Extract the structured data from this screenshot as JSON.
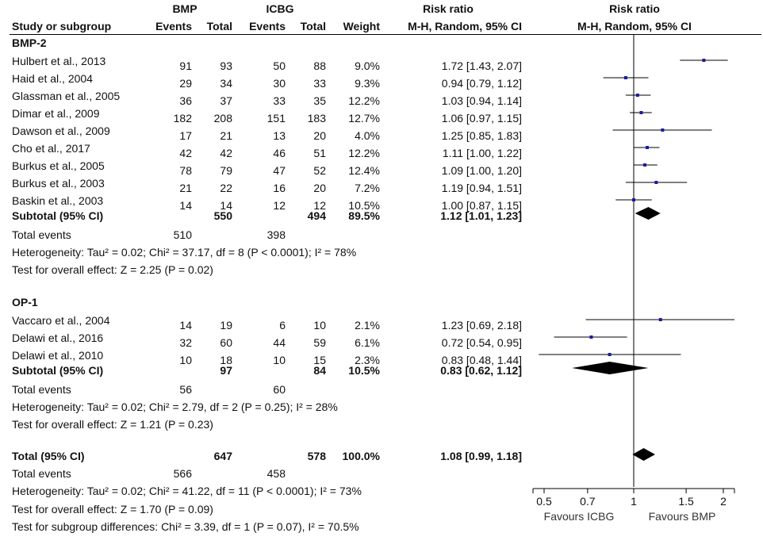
{
  "headers": {
    "study": "Study or subgroup",
    "exp_group": "BMP",
    "ctl_group": "ICBG",
    "events": "Events",
    "total": "Total",
    "weight": "Weight",
    "rr_title": "Risk ratio",
    "rr_method": "M-H, Random, 95% CI",
    "plot_title": "Risk ratio",
    "plot_method": "M-H, Random, 95% CI"
  },
  "groups": [
    {
      "name": "BMP-2",
      "studies": [
        {
          "study": "Hulbert et al., 2013",
          "e_events": "91",
          "e_total": "93",
          "c_events": "50",
          "c_total": "88",
          "weight": "9.0%",
          "ci": "1.72 [1.43, 2.07]"
        },
        {
          "study": "Haid et al., 2004",
          "e_events": "29",
          "e_total": "34",
          "c_events": "30",
          "c_total": "33",
          "weight": "9.3%",
          "ci": "0.94 [0.79, 1.12]"
        },
        {
          "study": "Glassman et al., 2005",
          "e_events": "36",
          "e_total": "37",
          "c_events": "33",
          "c_total": "35",
          "weight": "12.2%",
          "ci": "1.03 [0.94, 1.14]"
        },
        {
          "study": "Dimar et al., 2009",
          "e_events": "182",
          "e_total": "208",
          "c_events": "151",
          "c_total": "183",
          "weight": "12.7%",
          "ci": "1.06 [0.97, 1.15]"
        },
        {
          "study": "Dawson et al., 2009",
          "e_events": "17",
          "e_total": "21",
          "c_events": "13",
          "c_total": "20",
          "weight": "4.0%",
          "ci": "1.25 [0.85, 1.83]"
        },
        {
          "study": "Cho et al., 2017",
          "e_events": "42",
          "e_total": "42",
          "c_events": "46",
          "c_total": "51",
          "weight": "12.2%",
          "ci": "1.11 [1.00, 1.22]"
        },
        {
          "study": "Burkus et al., 2005",
          "e_events": "78",
          "e_total": "79",
          "c_events": "47",
          "c_total": "52",
          "weight": "12.4%",
          "ci": "1.09 [1.00, 1.20]"
        },
        {
          "study": "Burkus et al., 2003",
          "e_events": "21",
          "e_total": "22",
          "c_events": "16",
          "c_total": "20",
          "weight": "7.2%",
          "ci": "1.19 [0.94, 1.51]"
        },
        {
          "study": "Baskin et al., 2003",
          "e_events": "14",
          "e_total": "14",
          "c_events": "12",
          "c_total": "12",
          "weight": "10.5%",
          "ci": "1.00 [0.87, 1.15]"
        }
      ],
      "subtotal": {
        "label": "Subtotal (95% CI)",
        "e_total": "550",
        "c_total": "494",
        "weight": "89.5%",
        "ci": "1.12 [1.01, 1.23]"
      },
      "total_events": {
        "label": "Total events",
        "e": "510",
        "c": "398"
      },
      "heterogeneity": "Heterogeneity: Tau² = 0.02; Chi² = 37.17, df = 8 (P < 0.0001); I² = 78%",
      "overall_effect": "Test for overall effect: Z = 2.25 (P = 0.02)"
    },
    {
      "name": "OP-1",
      "studies": [
        {
          "study": "Vaccaro et al., 2004",
          "e_events": "14",
          "e_total": "19",
          "c_events": "6",
          "c_total": "10",
          "weight": "2.1%",
          "ci": "1.23 [0.69, 2.18]"
        },
        {
          "study": "Delawi et al., 2016",
          "e_events": "32",
          "e_total": "60",
          "c_events": "44",
          "c_total": "59",
          "weight": "6.1%",
          "ci": "0.72 [0.54, 0.95]"
        },
        {
          "study": "Delawi et al., 2010",
          "e_events": "10",
          "e_total": "18",
          "c_events": "10",
          "c_total": "15",
          "weight": "2.3%",
          "ci": "0.83 [0.48, 1.44]"
        }
      ],
      "subtotal": {
        "label": "Subtotal (95% CI)",
        "e_total": "97",
        "c_total": "84",
        "weight": "10.5%",
        "ci": "0.83 [0.62, 1.12]"
      },
      "total_events": {
        "label": "Total events",
        "e": "56",
        "c": "60"
      },
      "heterogeneity": "Heterogeneity: Tau² = 0.02; Chi² = 2.79, df = 2 (P = 0.25); I² = 28%",
      "overall_effect": "Test for overall effect: Z = 1.21 (P = 0.23)"
    }
  ],
  "total": {
    "label": "Total (95% CI)",
    "e_total": "647",
    "c_total": "578",
    "weight": "100.0%",
    "ci": "1.08 [0.99, 1.18]",
    "events_label": "Total events",
    "e_events": "566",
    "c_events": "458",
    "heterogeneity": "Heterogeneity: Tau² = 0.02; Chi² = 41.22, df = 11 (P < 0.0001); I² = 73%",
    "overall_effect": "Test for overall effect: Z = 1.70 (P = 0.09)",
    "subgroup_diff": "Test for subgroup differences: Chi² = 3.39, df = 1 (P = 0.07), I² = 70.5%"
  },
  "chart_data": {
    "type": "forest",
    "scale": "log",
    "xlim": [
      0.5,
      2.2
    ],
    "null_line": 1,
    "ticks": [
      0.5,
      0.7,
      1,
      1.5,
      2
    ],
    "tick_labels": [
      "0.5",
      "0.7",
      "1",
      "1.5",
      "2"
    ],
    "favours_left": "Favours ICBG",
    "favours_right": "Favours BMP",
    "studies": [
      {
        "name": "Hulbert et al., 2013",
        "rr": 1.72,
        "lo": 1.43,
        "hi": 2.07
      },
      {
        "name": "Haid et al., 2004",
        "rr": 0.94,
        "lo": 0.79,
        "hi": 1.12
      },
      {
        "name": "Glassman et al., 2005",
        "rr": 1.03,
        "lo": 0.94,
        "hi": 1.14
      },
      {
        "name": "Dimar et al., 2009",
        "rr": 1.06,
        "lo": 0.97,
        "hi": 1.15
      },
      {
        "name": "Dawson et al., 2009",
        "rr": 1.25,
        "lo": 0.85,
        "hi": 1.83
      },
      {
        "name": "Cho et al., 2017",
        "rr": 1.11,
        "lo": 1.0,
        "hi": 1.22
      },
      {
        "name": "Burkus et al., 2005",
        "rr": 1.09,
        "lo": 1.0,
        "hi": 1.2
      },
      {
        "name": "Burkus et al., 2003",
        "rr": 1.19,
        "lo": 0.94,
        "hi": 1.51
      },
      {
        "name": "Baskin et al., 2003",
        "rr": 1.0,
        "lo": 0.87,
        "hi": 1.15
      },
      {
        "name": "Vaccaro et al., 2004",
        "rr": 1.23,
        "lo": 0.69,
        "hi": 2.18
      },
      {
        "name": "Delawi et al., 2016",
        "rr": 0.72,
        "lo": 0.54,
        "hi": 0.95
      },
      {
        "name": "Delawi et al., 2010",
        "rr": 0.83,
        "lo": 0.48,
        "hi": 1.44
      }
    ],
    "diamonds": [
      {
        "name": "Subtotal BMP-2",
        "rr": 1.12,
        "lo": 1.01,
        "hi": 1.23
      },
      {
        "name": "Subtotal OP-1",
        "rr": 0.83,
        "lo": 0.62,
        "hi": 1.12
      },
      {
        "name": "Total",
        "rr": 1.08,
        "lo": 0.99,
        "hi": 1.18
      }
    ],
    "colors": {
      "marker": "#1a1aa6",
      "line": "#000000",
      "diamond": "#000000"
    }
  }
}
